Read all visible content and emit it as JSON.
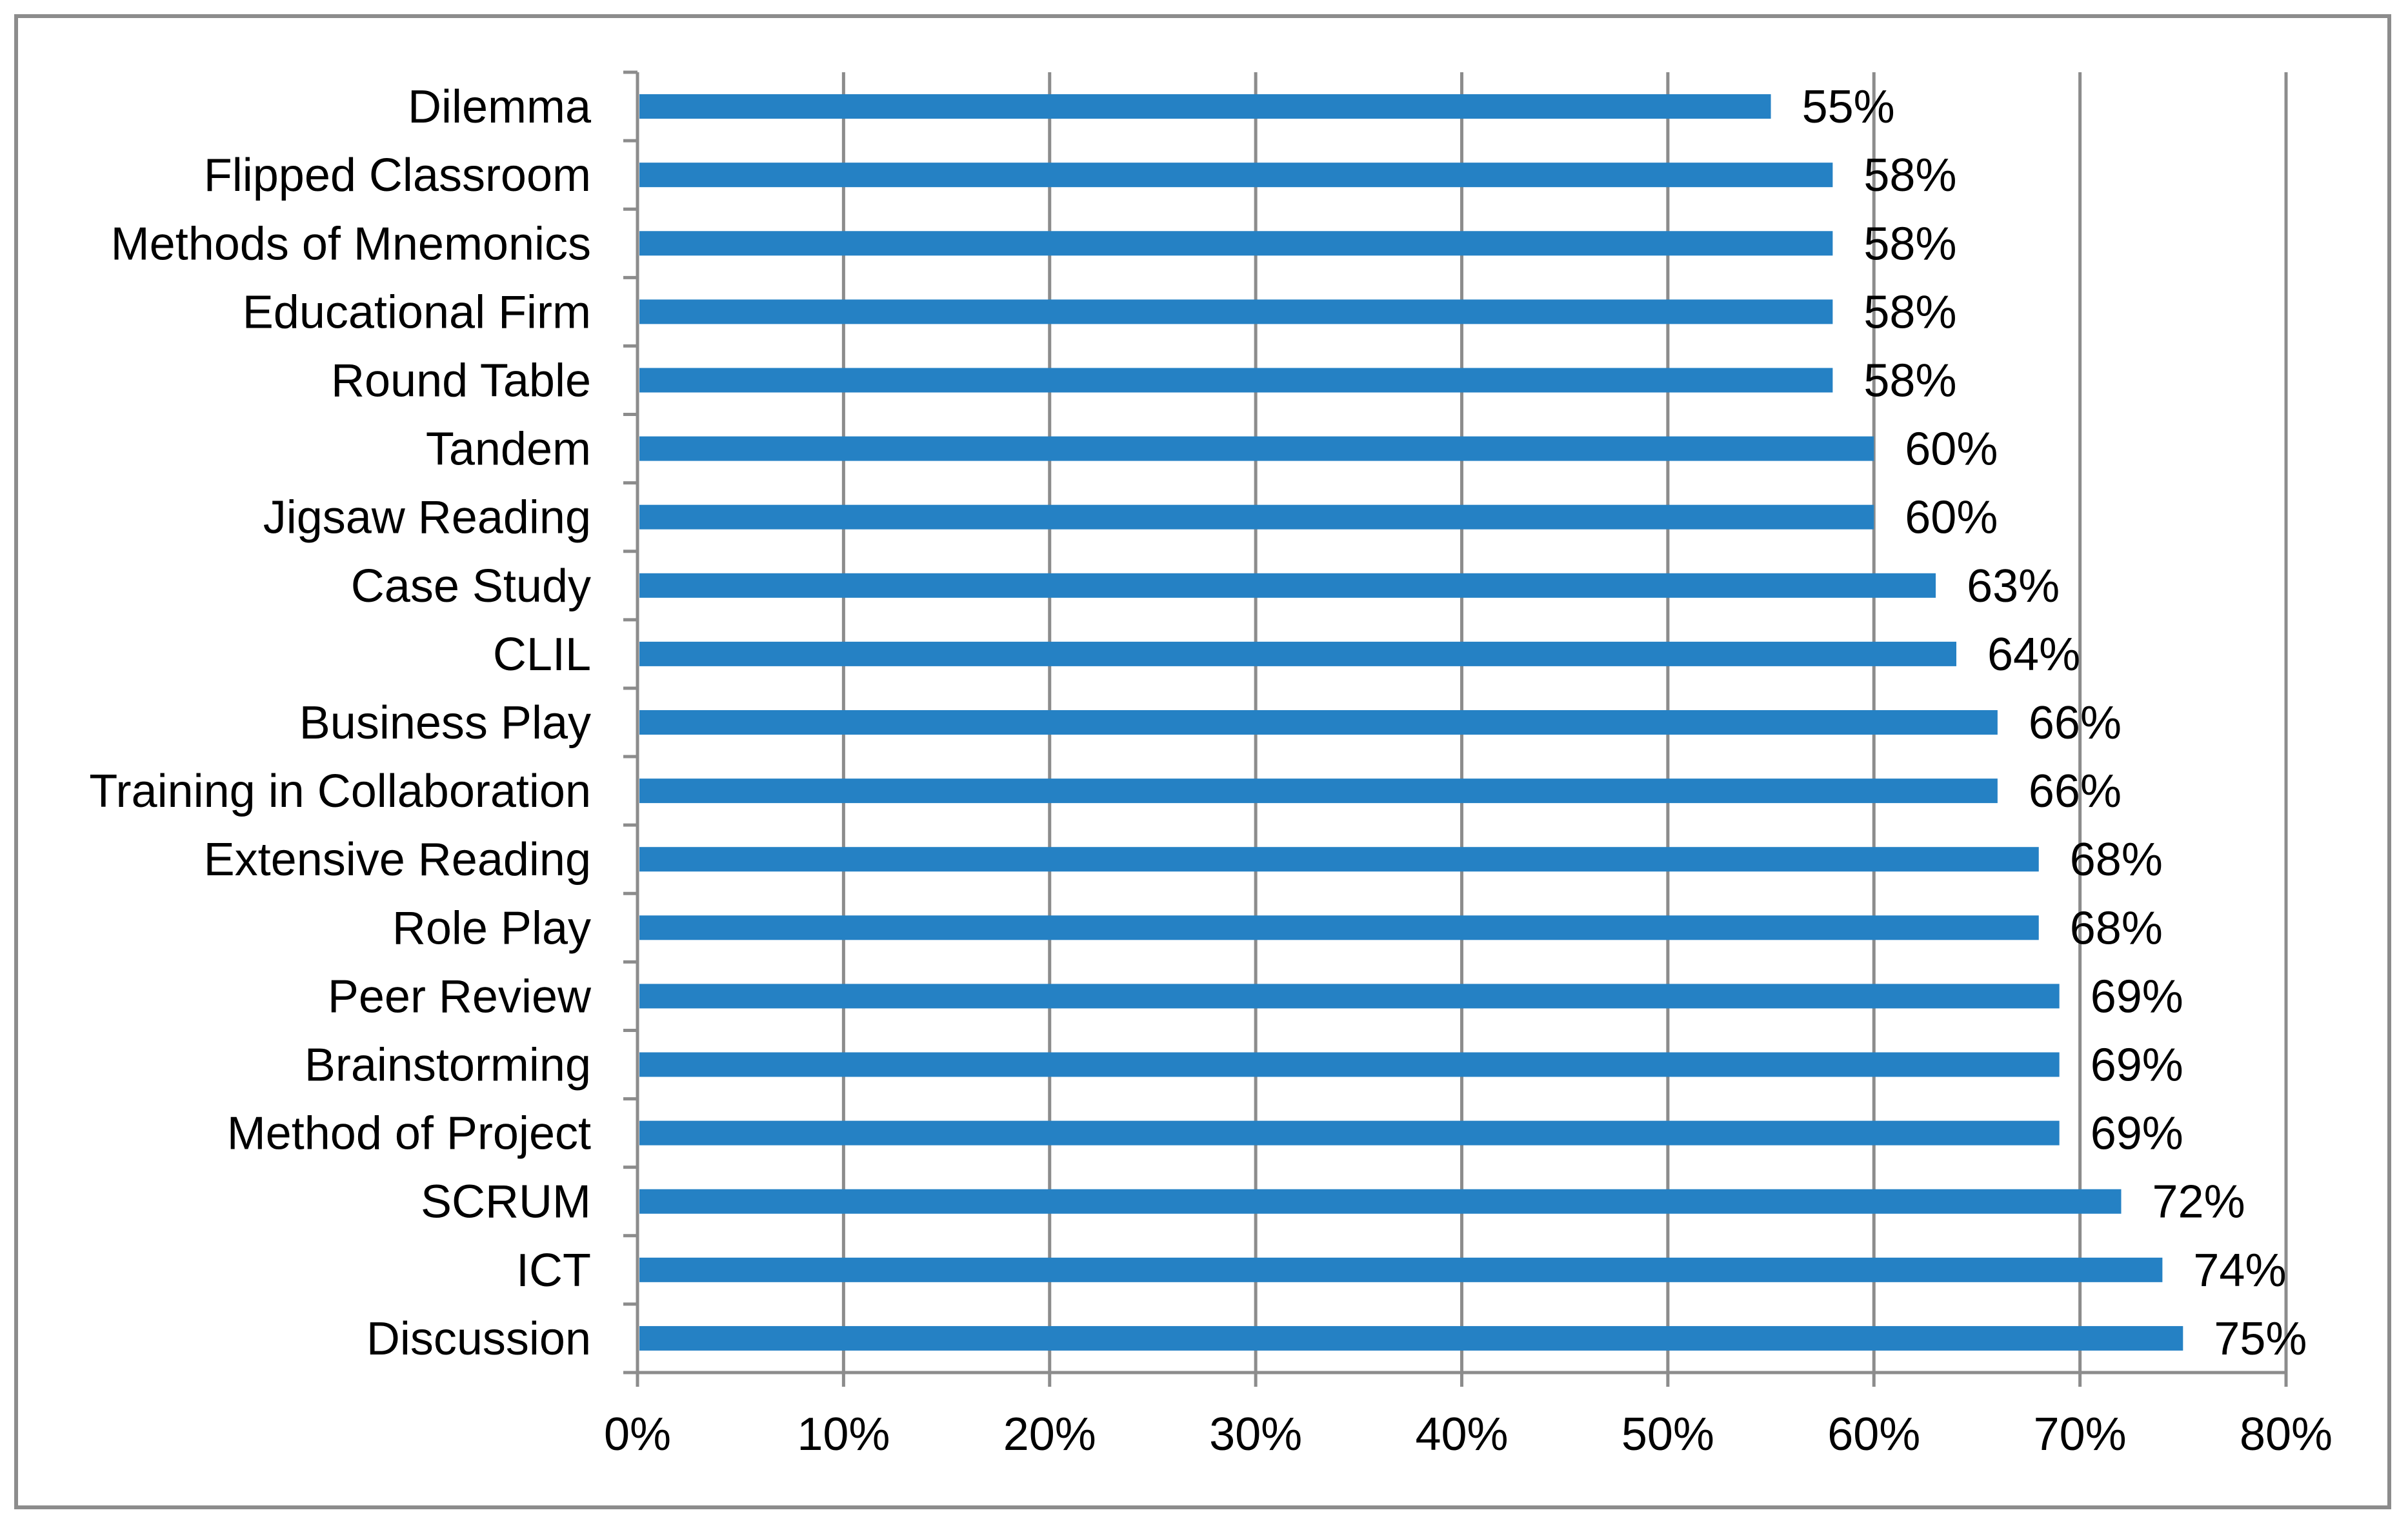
{
  "chart_data": {
    "type": "bar",
    "orientation": "horizontal",
    "categories": [
      "Dilemma",
      "Flipped Classroom",
      "Methods of Mnemonics",
      "Educational Firm",
      "Round Table",
      "Tandem",
      "Jigsaw Reading",
      "Case Study",
      "CLIL",
      "Business Play",
      "Training in Collaboration",
      "Extensive Reading",
      "Role Play",
      "Peer Review",
      "Brainstorming",
      "Method of Project",
      "SCRUM",
      "ICT",
      "Discussion"
    ],
    "values": [
      55,
      58,
      58,
      58,
      58,
      60,
      60,
      63,
      64,
      66,
      66,
      68,
      68,
      69,
      69,
      69,
      72,
      74,
      75
    ],
    "data_labels": [
      "55%",
      "58%",
      "58%",
      "58%",
      "58%",
      "60%",
      "60%",
      "63%",
      "64%",
      "66%",
      "66%",
      "68%",
      "68%",
      "69%",
      "69%",
      "69%",
      "72%",
      "74%",
      "75%"
    ],
    "x_ticks": [
      "0%",
      "10%",
      "20%",
      "30%",
      "40%",
      "50%",
      "60%",
      "70%",
      "80%"
    ],
    "xlim": [
      0,
      80
    ],
    "title": "",
    "xlabel": "",
    "ylabel": "",
    "grid": "vertical",
    "legend": "none",
    "colors": {
      "bar": "#2581c4",
      "grid": "#8c8c8c",
      "text": "#000000"
    }
  }
}
